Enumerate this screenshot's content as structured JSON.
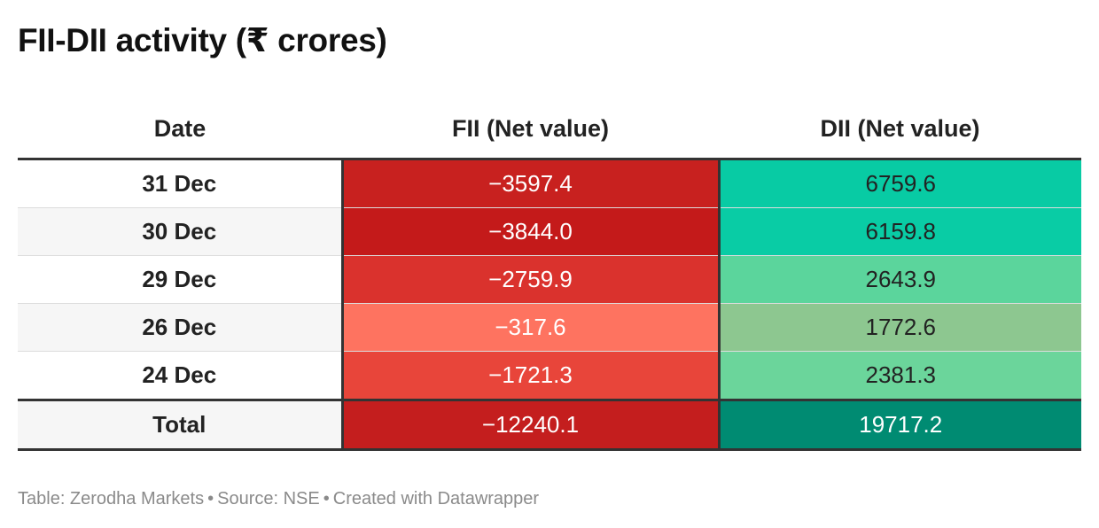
{
  "chart_data": {
    "type": "table",
    "title": "FII-DII activity (₹ crores)",
    "columns": [
      "Date",
      "FII (Net value)",
      "DII (Net value)"
    ],
    "rows": [
      {
        "date": "31 Dec",
        "fii": "−3597.4",
        "dii": "6759.6",
        "fii_value": -3597.4,
        "dii_value": 6759.6,
        "fii_color": "#c8211f",
        "dii_color": "#08cba4"
      },
      {
        "date": "30 Dec",
        "fii": "−3844.0",
        "dii": "6159.8",
        "fii_value": -3844.0,
        "dii_value": 6159.8,
        "fii_color": "#c41a1a",
        "dii_color": "#09cca5"
      },
      {
        "date": "29 Dec",
        "fii": "−2759.9",
        "dii": "2643.9",
        "fii_value": -2759.9,
        "dii_value": 2643.9,
        "fii_color": "#da322d",
        "dii_color": "#5bd59c"
      },
      {
        "date": "26 Dec",
        "fii": "−317.6",
        "dii": "1772.6",
        "fii_value": -317.6,
        "dii_value": 1772.6,
        "fii_color": "#fe7360",
        "dii_color": "#8dc790"
      },
      {
        "date": "24 Dec",
        "fii": "−1721.3",
        "dii": "2381.3",
        "fii_value": -1721.3,
        "dii_value": 2381.3,
        "fii_color": "#e8453a",
        "dii_color": "#6bd59b"
      }
    ],
    "total": {
      "label": "Total",
      "fii": "−12240.1",
      "dii": "19717.2",
      "fii_value": -12240.1,
      "dii_value": 19717.2,
      "fii_color": "#c41e1e",
      "dii_color": "#008b72"
    }
  },
  "footer": {
    "table_credit": "Table: Zerodha Markets",
    "source": "Source: NSE",
    "created_with": "Created with Datawrapper",
    "separator": "•"
  }
}
